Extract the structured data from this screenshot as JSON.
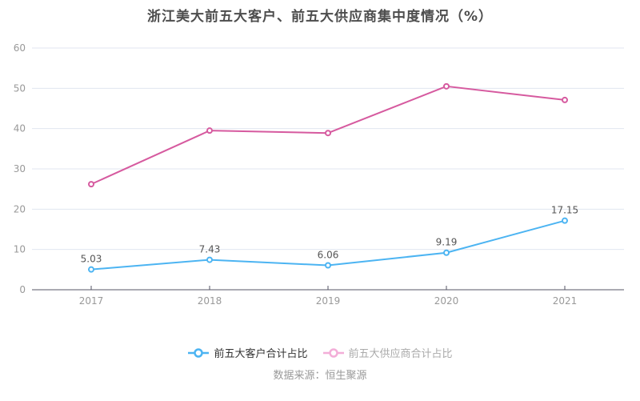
{
  "chart_data": {
    "type": "line",
    "title": "浙江美大前五大客户、前五大供应商集中度情况（%）",
    "categories": [
      "2017",
      "2018",
      "2019",
      "2020",
      "2021"
    ],
    "series": [
      {
        "name": "前五大客户合计占比",
        "values": [
          5.03,
          7.43,
          6.06,
          9.19,
          17.15
        ],
        "color": "#4cb4f2",
        "show_labels": true,
        "legend_marker_color": "#4cb4f2",
        "legend_text_color": "#333333"
      },
      {
        "name": "前五大供应商合计占比",
        "values": [
          26.2,
          39.5,
          38.9,
          50.5,
          47.1
        ],
        "color": "#d65a9f",
        "show_labels": false,
        "legend_marker_color": "#f3aed8",
        "legend_text_color": "#aaaaaa"
      }
    ],
    "xlabel": "",
    "ylabel": "",
    "ylim": [
      0,
      60
    ],
    "yticks": [
      0,
      10,
      20,
      30,
      40,
      50,
      60
    ],
    "grid": "horizontal",
    "legend_position": "bottom"
  },
  "source_text": "数据来源：恒生聚源",
  "colors": {
    "background": "#ffffff",
    "grid_line": "#e0e6f0",
    "axis_line": "#555566",
    "tick_label": "#999999",
    "data_label": "#555555",
    "title": "#4d4d4d",
    "source": "#999999"
  }
}
